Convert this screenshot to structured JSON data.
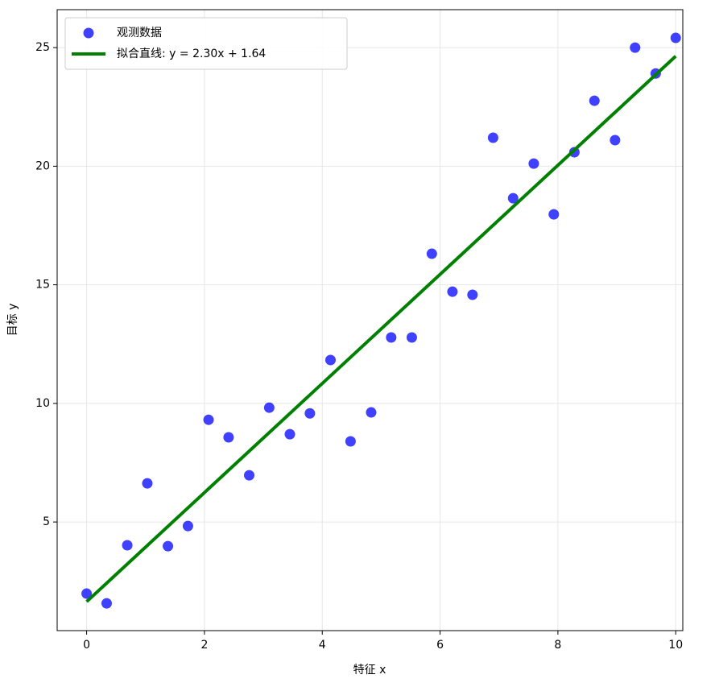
{
  "chart_data": {
    "type": "scatter",
    "xlabel": "特征 x",
    "ylabel": "目标 y",
    "xlim": [
      -0.5,
      10.12
    ],
    "ylim": [
      0.42,
      26.6
    ],
    "xticks": [
      0,
      2,
      4,
      6,
      8,
      10
    ],
    "yticks": [
      5,
      10,
      15,
      20,
      25
    ],
    "grid": true,
    "legend": "upper left",
    "series": [
      {
        "type": "scatter",
        "name": "观测数据",
        "color": "#0000ff",
        "x": [
          0,
          0.34,
          0.69,
          1.03,
          1.38,
          1.72,
          2.07,
          2.41,
          2.76,
          3.1,
          3.45,
          3.79,
          4.14,
          4.48,
          4.83,
          5.17,
          5.52,
          5.86,
          6.21,
          6.55,
          6.9,
          7.24,
          7.59,
          7.93,
          8.28,
          8.62,
          8.97,
          9.31,
          9.66,
          10
        ],
        "values": [
          1.98,
          1.57,
          4.02,
          6.63,
          3.98,
          4.83,
          9.31,
          8.57,
          6.97,
          9.82,
          8.7,
          9.58,
          11.83,
          8.4,
          9.62,
          12.78,
          12.78,
          16.31,
          14.71,
          14.58,
          21.2,
          18.65,
          20.11,
          17.97,
          20.59,
          22.76,
          21.1,
          25.0,
          23.91,
          25.41
        ]
      },
      {
        "type": "line",
        "name": "拟合直线: y = 2.30x + 1.64",
        "color": "#008000",
        "x": [
          0,
          10
        ],
        "values": [
          1.64,
          24.64
        ]
      }
    ]
  }
}
